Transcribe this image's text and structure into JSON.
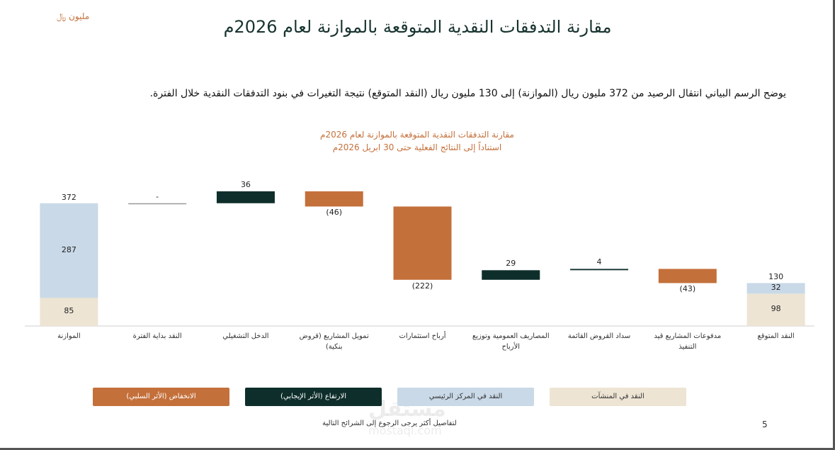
{
  "logo": "مليون ﷼",
  "title": "مقارنة التدفقات النقدية المتوقعة بالموازنة لعام 2026م",
  "description": "يوضح الرسم البياني انتقال الرصيد من 372 مليون ريال (الموازنة) إلى 130 مليون ريال (النقد المتوقع) نتيجة التغيرات في بنود التدفقات النقدية خلال الفترة.",
  "footer": "لتفاصيل أكثر يرجى الرجوع إلى الشرائح التالية",
  "page_number": "5",
  "watermark": [
    "مستقل",
    "mostaql.com"
  ],
  "chart_data": {
    "type": "waterfall",
    "title": "مقارنة التدفقات النقدية المتوقعة بالموازنة لعام 2026م",
    "subtitle": "استناداً إلى النتائج الفعلية حتى 30 ابريل 2026م",
    "categories": [
      "الموازنة",
      "النقد بداية الفترة",
      "الدخل التشغيلي",
      "تمويل المشاريع (قروض بنكية)",
      "أرباح استثمارات",
      "المصاريف العمومية وتوزيع الأرباح",
      "سداد القروض القائمة",
      "مدفوعات المشاريع قيد التنفيذ",
      "النقد المتوقع"
    ],
    "totals": [
      372,
      null,
      null,
      null,
      null,
      null,
      null,
      null,
      130
    ],
    "series": [
      {
        "name": "النقد في المنشآت",
        "color": "#ede4d4",
        "values": [
          85,
          null,
          null,
          null,
          null,
          null,
          null,
          null,
          98
        ]
      },
      {
        "name": "النقد في المركز الرئيسي",
        "color": "#c9d9e7",
        "values": [
          287,
          null,
          null,
          null,
          null,
          null,
          null,
          null,
          32
        ]
      },
      {
        "name": "الارتفاع (الأثر الإيجابي)",
        "color": "#0e2e2b",
        "values": [
          null,
          0,
          36,
          null,
          null,
          29,
          4,
          null,
          null
        ],
        "value_labels": [
          null,
          "-",
          null,
          null,
          null,
          null,
          null,
          null,
          null
        ]
      },
      {
        "name": "الانخفاض (الأثر السلبي)",
        "color": "#c4703b",
        "values": [
          null,
          null,
          null,
          -46,
          -222,
          null,
          null,
          -43,
          null
        ],
        "value_labels": [
          null,
          null,
          null,
          "(46)",
          "(222)",
          null,
          null,
          "(43)",
          null
        ]
      }
    ]
  }
}
